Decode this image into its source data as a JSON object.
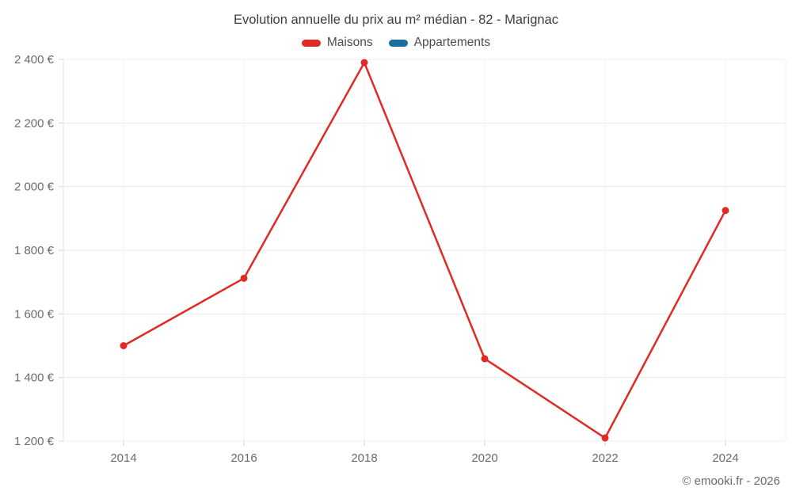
{
  "header": {
    "title": "Evolution annuelle du prix au m² médian - 82 - Marignac"
  },
  "legend": {
    "items": [
      {
        "label": "Maisons",
        "color": "#df2b25"
      },
      {
        "label": "Appartements",
        "color": "#1a6f9c"
      }
    ]
  },
  "footer": {
    "credit": "© emooki.fr - 2026"
  },
  "chart_data": {
    "type": "line",
    "title": "Evolution annuelle du prix au m² médian - 82 - Marignac",
    "categories": [
      "2014",
      "2016",
      "2018",
      "2020",
      "2022",
      "2024"
    ],
    "series": [
      {
        "name": "Maisons",
        "color": "#df2b25",
        "values": [
          1500,
          1712,
          2390,
          1459,
          1210,
          1925
        ]
      },
      {
        "name": "Appartements",
        "color": "#1a6f9c",
        "values": []
      }
    ],
    "xlabel": "",
    "ylabel": "",
    "ylim": [
      1200,
      2400
    ],
    "ytick_step": 200,
    "ytick_suffix": " €",
    "grid": true,
    "legend_position": "top"
  }
}
